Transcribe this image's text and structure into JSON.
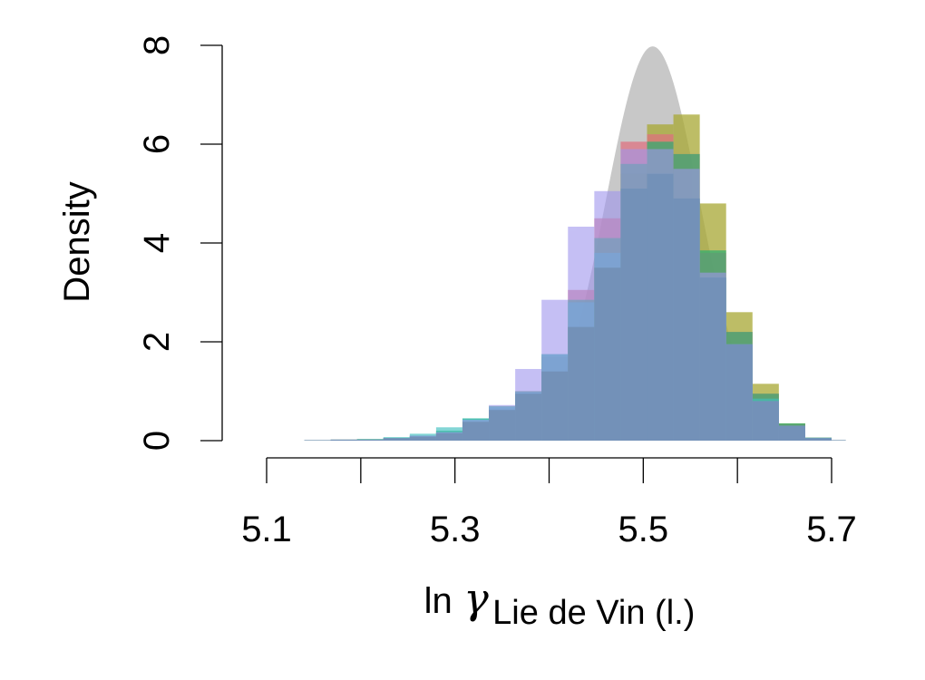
{
  "chart_data": {
    "type": "histogram",
    "xlabel": {
      "prefix": "ln",
      "symbol": "γ",
      "subscript": "Lie de Vin (l.)"
    },
    "ylabel": "Density",
    "xlim": [
      5.1,
      5.7
    ],
    "ylim": [
      0,
      8
    ],
    "x_ticks": [
      5.1,
      5.2,
      5.3,
      5.4,
      5.5,
      5.6,
      5.7
    ],
    "x_tick_labels": [
      "5.1",
      "",
      "5.3",
      "",
      "5.5",
      "",
      "5.7"
    ],
    "y_ticks": [
      0,
      2,
      4,
      6,
      8
    ],
    "y_tick_labels": [
      "0",
      "2",
      "4",
      "6",
      "8"
    ],
    "bin_edges": [
      5.14,
      5.168,
      5.196,
      5.224,
      5.252,
      5.28,
      5.308,
      5.336,
      5.364,
      5.392,
      5.42,
      5.448,
      5.476,
      5.504,
      5.532,
      5.56,
      5.588,
      5.616,
      5.644,
      5.672,
      5.7,
      5.715
    ],
    "reference_curve": {
      "type": "normal_density",
      "mean": 5.51,
      "sd": 0.05,
      "color": "#c8c8c8"
    },
    "series": [
      {
        "color": "#a8a833",
        "opacity": 0.75,
        "values": [
          0.01,
          0.02,
          0.03,
          0.05,
          0.08,
          0.15,
          0.38,
          0.62,
          0.95,
          1.4,
          2.3,
          3.5,
          5.4,
          6.4,
          6.6,
          4.8,
          2.6,
          1.15,
          0.35,
          0.06,
          0.01
        ]
      },
      {
        "color": "#e07080",
        "opacity": 0.72,
        "values": [
          0.01,
          0.02,
          0.02,
          0.05,
          0.1,
          0.18,
          0.4,
          0.65,
          1.0,
          1.7,
          3.05,
          4.5,
          6.05,
          6.2,
          5.8,
          3.8,
          2.2,
          0.95,
          0.33,
          0.06,
          0.01
        ]
      },
      {
        "color": "#2fae70",
        "opacity": 0.72,
        "values": [
          0.01,
          0.02,
          0.03,
          0.06,
          0.1,
          0.2,
          0.45,
          0.7,
          1.0,
          1.75,
          2.85,
          4.1,
          5.6,
          6.05,
          5.8,
          3.85,
          2.2,
          0.95,
          0.35,
          0.06,
          0.01
        ]
      },
      {
        "color": "#40c0c0",
        "opacity": 0.65,
        "values": [
          0.01,
          0.02,
          0.03,
          0.07,
          0.14,
          0.27,
          0.45,
          0.68,
          0.98,
          1.75,
          2.8,
          3.8,
          5.1,
          5.4,
          4.9,
          3.3,
          1.95,
          0.85,
          0.3,
          0.06,
          0.01
        ]
      },
      {
        "color": "#9f96ee",
        "opacity": 0.6,
        "values": [
          0.01,
          0.02,
          0.02,
          0.05,
          0.1,
          0.17,
          0.42,
          0.72,
          1.45,
          2.85,
          4.33,
          5.05,
          5.9,
          5.9,
          5.5,
          3.4,
          1.95,
          0.8,
          0.3,
          0.05,
          0.01
        ]
      }
    ],
    "overlap_color": "#7391b8"
  }
}
